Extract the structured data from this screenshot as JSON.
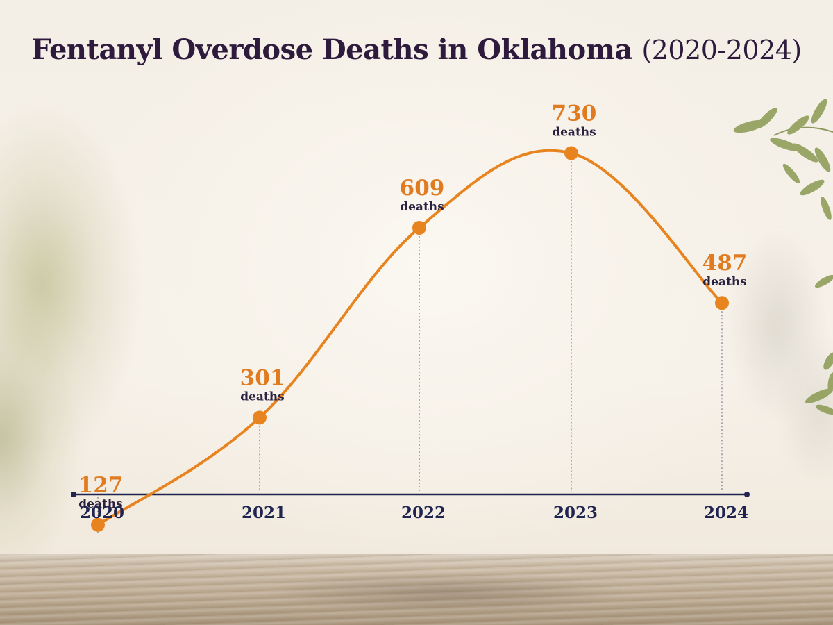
{
  "title": "Fentanyl Overdose Deaths in Oklahoma",
  "subtitle": "(2020-2024)",
  "chart_data": {
    "type": "line",
    "title": "Fentanyl Overdose Deaths in Oklahoma (2020-2024)",
    "categories": [
      "2020",
      "2021",
      "2022",
      "2023",
      "2024"
    ],
    "values": [
      127,
      301,
      609,
      730,
      487
    ],
    "value_unit": "deaths",
    "xlabel": "",
    "ylabel": "",
    "ylim": [
      0,
      800
    ],
    "grid": false,
    "legend": "none",
    "colors": {
      "line": "#e8841f",
      "point": "#e8841f",
      "value_text": "#e07c1f",
      "axis": "#1f2450",
      "title": "#2e1a3d"
    }
  }
}
